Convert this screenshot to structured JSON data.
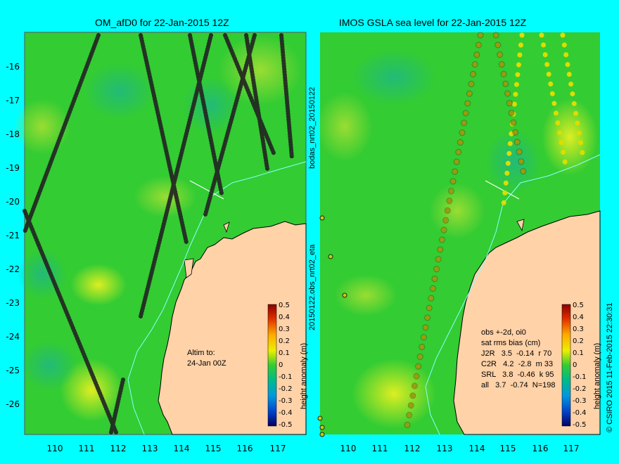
{
  "left_panel": {
    "title": "OM_afD0 for 22-Jan-2015 12Z",
    "note_line1": "Altim to:",
    "note_line2": "24-Jan 00Z"
  },
  "right_panel": {
    "title": "IMOS GSLA sea level  for 22-Jan-2015 12Z",
    "side_label_top": "bodas_nrt02_20150122",
    "side_label_bottom": "20150122.obs_nrt02_eta",
    "stats_header": "obs +-2d, oi0",
    "stats_subheader": "sat rms bias (cm)",
    "stats_rows": [
      "J2R   3.5  -0.14  r 70",
      "C2R   4.2  -2.8  m 33",
      "SRL   3.8  -0.46  k 95",
      "all   3.7  -0.74  N=198"
    ]
  },
  "colorbar": {
    "label": "height anomaly (m)",
    "ticks": [
      "0.5",
      "0.4",
      "0.3",
      "0.2",
      "0.1",
      "0",
      "-0.1",
      "-0.2",
      "-0.3",
      "-0.4",
      "-0.5"
    ]
  },
  "axes": {
    "x_ticks": [
      "110",
      "111",
      "112",
      "113",
      "114",
      "115",
      "116",
      "117"
    ],
    "y_ticks": [
      "-16",
      "-17",
      "-18",
      "-19",
      "-20",
      "-21",
      "-22",
      "-23",
      "-24",
      "-25",
      "-26"
    ]
  },
  "copyright": "© CSIRO 2015   11-Feb-2015 22:30:31",
  "colors": {
    "background": "#00ffff",
    "land": "#ffd2a8",
    "ocean_base": "#33cc33"
  }
}
